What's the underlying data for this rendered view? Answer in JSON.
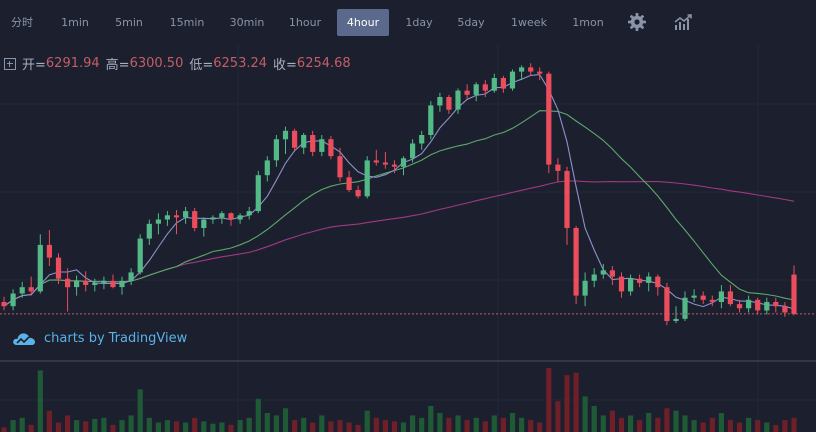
{
  "toolbar": {
    "timeframes": [
      {
        "label": "分时",
        "active": false
      },
      {
        "label": "1min",
        "active": false
      },
      {
        "label": "5min",
        "active": false
      },
      {
        "label": "15min",
        "active": false
      },
      {
        "label": "30min",
        "active": false
      },
      {
        "label": "1hour",
        "active": false
      },
      {
        "label": "4hour",
        "active": true
      },
      {
        "label": "1day",
        "active": false
      },
      {
        "label": "5day",
        "active": false
      },
      {
        "label": "1week",
        "active": false
      },
      {
        "label": "1mon",
        "active": false
      }
    ],
    "settings_icon": "gear-icon",
    "indicators_icon": "chart-bars-icon"
  },
  "ohlc": {
    "open_label": "开=",
    "open": "6291.94",
    "high_label": "高=",
    "high": "6300.50",
    "low_label": "低=",
    "low": "6253.24",
    "close_label": "收=",
    "close": "6254.68"
  },
  "branding": {
    "prefix": "charts by",
    "name": "TradingView",
    "icon": "cloud-logo-icon"
  },
  "colors": {
    "up": "#53b987",
    "down": "#eb4d5c",
    "ma_fast": "#8b93c9",
    "ma_mid": "#5ea86a",
    "ma_slow": "#a0397f",
    "last_price_line": "#c45d67"
  },
  "chart_data": {
    "type": "candlestick",
    "interval": "4hour",
    "last_price": 6254.68,
    "candles": [
      [
        6266,
        6271,
        6258,
        6262
      ],
      [
        6262,
        6278,
        6258,
        6274
      ],
      [
        6274,
        6285,
        6270,
        6280
      ],
      [
        6280,
        6290,
        6272,
        6276
      ],
      [
        6276,
        6330,
        6274,
        6320
      ],
      [
        6320,
        6334,
        6300,
        6308
      ],
      [
        6308,
        6312,
        6283,
        6288
      ],
      [
        6288,
        6298,
        6257,
        6280
      ],
      [
        6280,
        6291,
        6272,
        6286
      ],
      [
        6286,
        6295,
        6276,
        6282
      ],
      [
        6282,
        6288,
        6276,
        6284
      ],
      [
        6284,
        6290,
        6278,
        6286
      ],
      [
        6286,
        6292,
        6279,
        6280
      ],
      [
        6280,
        6290,
        6273,
        6286
      ],
      [
        6286,
        6298,
        6282,
        6294
      ],
      [
        6294,
        6330,
        6292,
        6326
      ],
      [
        6326,
        6344,
        6320,
        6340
      ],
      [
        6340,
        6350,
        6330,
        6344
      ],
      [
        6344,
        6352,
        6338,
        6348
      ],
      [
        6348,
        6353,
        6330,
        6346
      ],
      [
        6346,
        6356,
        6340,
        6352
      ],
      [
        6352,
        6355,
        6333,
        6336
      ],
      [
        6336,
        6346,
        6328,
        6344
      ],
      [
        6344,
        6348,
        6340,
        6346
      ],
      [
        6346,
        6352,
        6340,
        6350
      ],
      [
        6350,
        6351,
        6338,
        6344
      ],
      [
        6344,
        6350,
        6340,
        6348
      ],
      [
        6348,
        6356,
        6344,
        6352
      ],
      [
        6352,
        6390,
        6350,
        6386
      ],
      [
        6386,
        6404,
        6380,
        6400
      ],
      [
        6400,
        6424,
        6394,
        6420
      ],
      [
        6420,
        6432,
        6406,
        6428
      ],
      [
        6428,
        6430,
        6408,
        6412
      ],
      [
        6412,
        6426,
        6406,
        6424
      ],
      [
        6424,
        6428,
        6404,
        6408
      ],
      [
        6408,
        6424,
        6404,
        6420
      ],
      [
        6420,
        6423,
        6401,
        6404
      ],
      [
        6404,
        6412,
        6380,
        6384
      ],
      [
        6384,
        6390,
        6370,
        6372
      ],
      [
        6372,
        6376,
        6364,
        6366
      ],
      [
        6366,
        6404,
        6364,
        6400
      ],
      [
        6400,
        6410,
        6395,
        6398
      ],
      [
        6398,
        6408,
        6392,
        6396
      ],
      [
        6396,
        6400,
        6388,
        6394
      ],
      [
        6394,
        6404,
        6386,
        6402
      ],
      [
        6402,
        6420,
        6398,
        6416
      ],
      [
        6416,
        6428,
        6410,
        6424
      ],
      [
        6424,
        6456,
        6420,
        6452
      ],
      [
        6452,
        6464,
        6446,
        6460
      ],
      [
        6460,
        6462,
        6444,
        6448
      ],
      [
        6448,
        6468,
        6444,
        6466
      ],
      [
        6466,
        6472,
        6458,
        6462
      ],
      [
        6462,
        6474,
        6456,
        6472
      ],
      [
        6472,
        6476,
        6460,
        6466
      ],
      [
        6466,
        6482,
        6464,
        6478
      ],
      [
        6478,
        6480,
        6464,
        6468
      ],
      [
        6468,
        6486,
        6466,
        6484
      ],
      [
        6484,
        6490,
        6476,
        6488
      ],
      [
        6488,
        6492,
        6480,
        6484
      ],
      [
        6484,
        6488,
        6476,
        6482
      ],
      [
        6482,
        6484,
        6388,
        6396
      ],
      [
        6396,
        6402,
        6380,
        6390
      ],
      [
        6390,
        6394,
        6320,
        6336
      ],
      [
        6336,
        6338,
        6264,
        6272
      ],
      [
        6272,
        6294,
        6262,
        6286
      ],
      [
        6286,
        6298,
        6280,
        6292
      ],
      [
        6292,
        6302,
        6288,
        6296
      ],
      [
        6296,
        6300,
        6282,
        6290
      ],
      [
        6290,
        6294,
        6270,
        6276
      ],
      [
        6276,
        6292,
        6272,
        6288
      ],
      [
        6288,
        6292,
        6280,
        6284
      ],
      [
        6284,
        6294,
        6276,
        6290
      ],
      [
        6290,
        6292,
        6272,
        6280
      ],
      [
        6280,
        6284,
        6244,
        6248
      ],
      [
        6248,
        6262,
        6246,
        6250
      ],
      [
        6250,
        6276,
        6248,
        6270
      ],
      [
        6270,
        6278,
        6266,
        6272
      ],
      [
        6272,
        6276,
        6264,
        6268
      ],
      [
        6268,
        6272,
        6262,
        6266
      ],
      [
        6266,
        6282,
        6260,
        6276
      ],
      [
        6276,
        6282,
        6262,
        6264
      ],
      [
        6264,
        6268,
        6256,
        6260
      ],
      [
        6260,
        6272,
        6256,
        6268
      ],
      [
        6268,
        6270,
        6254,
        6258
      ],
      [
        6258,
        6270,
        6254,
        6266
      ],
      [
        6266,
        6270,
        6256,
        6262
      ],
      [
        6262,
        6266,
        6252,
        6256
      ],
      [
        6291.94,
        6300.5,
        6253.24,
        6254.68
      ]
    ],
    "volume": [
      4,
      10,
      12,
      6,
      52,
      18,
      8,
      14,
      10,
      9,
      11,
      12,
      6,
      10,
      14,
      36,
      12,
      8,
      10,
      9,
      8,
      12,
      9,
      7,
      8,
      6,
      10,
      12,
      28,
      16,
      14,
      20,
      10,
      12,
      8,
      14,
      9,
      10,
      8,
      6,
      18,
      12,
      10,
      9,
      8,
      14,
      12,
      22,
      16,
      12,
      14,
      10,
      12,
      9,
      14,
      12,
      16,
      12,
      10,
      8,
      54,
      26,
      48,
      50,
      30,
      22,
      14,
      18,
      12,
      14,
      10,
      16,
      12,
      20,
      18,
      14,
      10,
      8,
      12,
      16,
      10,
      8,
      12,
      10,
      8,
      6,
      10,
      12
    ],
    "ma": {
      "fast_period": 5,
      "mid_period": 20,
      "slow_period": 60
    }
  }
}
